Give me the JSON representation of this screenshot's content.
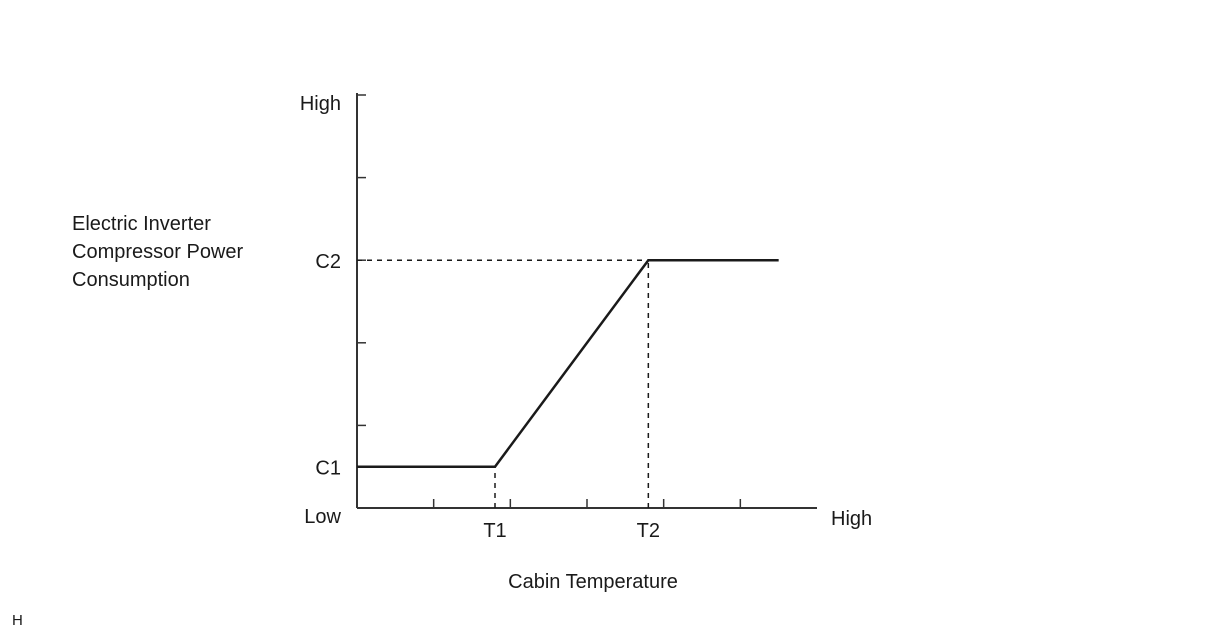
{
  "chart_data": {
    "type": "line",
    "title": "",
    "xlabel": "Cabin Temperature",
    "ylabel_lines": [
      "Electric Inverter",
      "Compressor Power",
      "Consumption"
    ],
    "x_axis": {
      "range": [
        0,
        6
      ],
      "ticks": [
        1,
        2,
        3,
        4,
        5
      ],
      "labeled_ticks": [
        {
          "value": 1.8,
          "label": "T1"
        },
        {
          "value": 3.8,
          "label": "T2"
        }
      ],
      "low_label": "Low",
      "high_label": "High"
    },
    "y_axis": {
      "range": [
        0,
        5
      ],
      "ticks": [
        1,
        2,
        3,
        4,
        5
      ],
      "labeled_ticks": [
        {
          "value": 0.5,
          "label": "C1"
        },
        {
          "value": 3.0,
          "label": "C2"
        }
      ],
      "high_label": "High"
    },
    "series": [
      {
        "points": [
          [
            0,
            0.5
          ],
          [
            1.8,
            0.5
          ],
          [
            3.8,
            3.0
          ],
          [
            5.5,
            3.0
          ]
        ]
      }
    ],
    "reference_lines": [
      {
        "from": [
          1.8,
          0
        ],
        "to": [
          1.8,
          0.5
        ],
        "style": "dashed"
      },
      {
        "from": [
          3.8,
          0
        ],
        "to": [
          3.8,
          3.0
        ],
        "style": "dashed"
      },
      {
        "from": [
          0,
          3.0
        ],
        "to": [
          3.8,
          3.0
        ],
        "style": "dashed"
      }
    ],
    "grid": false,
    "colors": {
      "line": "#1a1a1a",
      "axis": "#333333"
    }
  },
  "corner_mark": "H"
}
